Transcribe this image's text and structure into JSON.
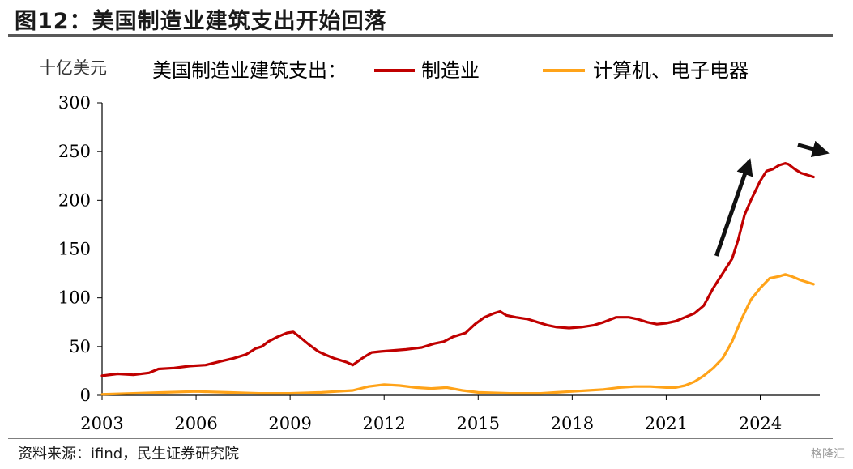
{
  "figure": {
    "title": "图12：美国制造业建筑支出开始回落",
    "source": "资料来源：ifind，民生证券研究院",
    "watermark": "格隆汇"
  },
  "chart_data": {
    "type": "line",
    "ylabel": "十亿美元",
    "legend_title": "美国制造业建筑支出：",
    "legend_placement": "top",
    "ylim": [
      0,
      300
    ],
    "xlim": [
      2003,
      2025.9
    ],
    "yticks": [
      "0",
      "50",
      "100",
      "150",
      "200",
      "250",
      "300"
    ],
    "xticks": [
      "2003",
      "2006",
      "2009",
      "2012",
      "2015",
      "2018",
      "2021",
      "2024"
    ],
    "grid": false,
    "colors": {
      "manufacturing": "#c00000",
      "computer": "#ffa319",
      "arrow": "#111111"
    },
    "series": [
      {
        "name": "制造业",
        "x": [
          2003.0,
          2003.5,
          2004.0,
          2004.5,
          2004.8,
          2005.3,
          2005.8,
          2006.3,
          2006.8,
          2007.2,
          2007.6,
          2007.9,
          2008.1,
          2008.3,
          2008.6,
          2008.9,
          2009.1,
          2009.3,
          2009.6,
          2009.9,
          2010.1,
          2010.4,
          2010.8,
          2011.0,
          2011.3,
          2011.6,
          2011.9,
          2012.3,
          2012.7,
          2013.2,
          2013.6,
          2013.9,
          2014.2,
          2014.6,
          2014.9,
          2015.2,
          2015.5,
          2015.7,
          2015.9,
          2016.2,
          2016.6,
          2016.9,
          2017.2,
          2017.5,
          2017.9,
          2018.3,
          2018.7,
          2019.0,
          2019.4,
          2019.8,
          2020.1,
          2020.4,
          2020.7,
          2021.0,
          2021.3,
          2021.6,
          2021.9,
          2022.2,
          2022.5,
          2022.8,
          2023.1,
          2023.3,
          2023.5,
          2023.7,
          2024.0,
          2024.2,
          2024.4,
          2024.6,
          2024.8,
          2024.9,
          2025.1,
          2025.3,
          2025.5,
          2025.7
        ],
        "values": [
          20,
          22,
          21,
          23,
          27,
          28,
          30,
          31,
          35,
          38,
          42,
          48,
          50,
          55,
          60,
          64,
          65,
          60,
          52,
          45,
          42,
          38,
          34,
          31,
          38,
          44,
          45,
          46,
          47,
          49,
          53,
          55,
          60,
          64,
          73,
          80,
          84,
          86,
          82,
          80,
          78,
          75,
          72,
          70,
          69,
          70,
          72,
          75,
          80,
          80,
          78,
          75,
          73,
          74,
          76,
          80,
          84,
          92,
          110,
          125,
          140,
          160,
          185,
          200,
          220,
          230,
          232,
          236,
          238,
          237,
          232,
          228,
          226,
          224
        ]
      },
      {
        "name": "计算机、电子电器",
        "x": [
          2003.0,
          2004.0,
          2005.0,
          2006.0,
          2007.0,
          2008.0,
          2009.0,
          2010.0,
          2010.5,
          2011.0,
          2011.5,
          2012.0,
          2012.5,
          2013.0,
          2013.5,
          2014.0,
          2014.5,
          2015.0,
          2016.0,
          2017.0,
          2017.5,
          2018.0,
          2018.5,
          2019.0,
          2019.5,
          2020.0,
          2020.5,
          2021.0,
          2021.3,
          2021.6,
          2021.9,
          2022.2,
          2022.5,
          2022.8,
          2023.1,
          2023.4,
          2023.7,
          2024.0,
          2024.3,
          2024.6,
          2024.8,
          2025.0,
          2025.3,
          2025.7
        ],
        "values": [
          1,
          2,
          3,
          4,
          3,
          2,
          2,
          3,
          4,
          5,
          9,
          11,
          10,
          8,
          7,
          8,
          5,
          3,
          2,
          2,
          3,
          4,
          5,
          6,
          8,
          9,
          9,
          8,
          8,
          10,
          14,
          20,
          28,
          38,
          55,
          78,
          98,
          110,
          120,
          122,
          124,
          122,
          118,
          114
        ]
      }
    ],
    "annotations": [
      {
        "type": "arrow",
        "from": [
          2022.6,
          143
        ],
        "to": [
          2023.65,
          240
        ]
      },
      {
        "type": "arrow",
        "from": [
          2025.2,
          257
        ],
        "to": [
          2026.1,
          249
        ]
      }
    ]
  }
}
